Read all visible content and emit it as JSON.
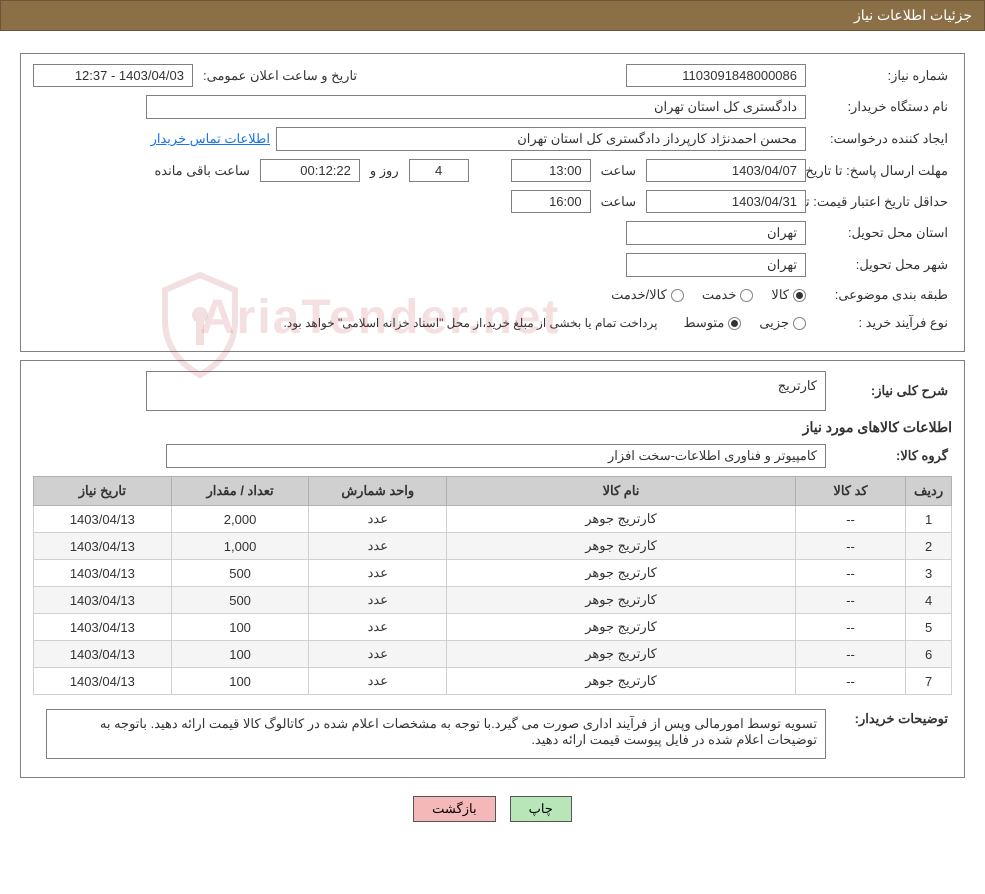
{
  "header": {
    "title": "جزئیات اطلاعات نیاز"
  },
  "info": {
    "need_number_label": "شماره نیاز:",
    "need_number": "1103091848000086",
    "announce_label": "تاریخ و ساعت اعلان عمومی:",
    "announce_value": "1403/04/03 - 12:37",
    "buyer_org_label": "نام دستگاه خریدار:",
    "buyer_org": "دادگستری کل استان تهران",
    "requester_label": "ایجاد کننده درخواست:",
    "requester": "محسن احمدنژاد کارپرداز دادگستری کل استان تهران",
    "contact_link": "اطلاعات تماس خریدار",
    "deadline_label": "مهلت ارسال پاسخ: تا تاریخ:",
    "deadline_date": "1403/04/07",
    "time_label": "ساعت",
    "deadline_time": "13:00",
    "days_label": "روز و",
    "days_value": "4",
    "remaining_time": "00:12:22",
    "remaining_label": "ساعت باقی مانده",
    "price_validity_label": "حداقل تاریخ اعتبار قیمت: تا تاریخ:",
    "price_date": "1403/04/31",
    "price_time": "16:00",
    "delivery_province_label": "استان محل تحویل:",
    "delivery_province": "تهران",
    "delivery_city_label": "شهر محل تحویل:",
    "delivery_city": "تهران",
    "category_label": "طبقه بندی موضوعی:",
    "radio_goods": "کالا",
    "radio_service": "خدمت",
    "radio_goods_service": "کالا/خدمت",
    "process_type_label": "نوع فرآیند خرید :",
    "radio_partial": "جزیی",
    "radio_medium": "متوسط",
    "process_note": "پرداخت تمام یا بخشی از مبلغ خرید،از محل \"اسناد خزانه اسلامی\" خواهد بود."
  },
  "detail": {
    "general_desc_label": "شرح کلی نیاز:",
    "general_desc": "کارتریج",
    "items_title": "اطلاعات کالاهای مورد نیاز",
    "group_label": "گروه کالا:",
    "group_value": "کامپیوتر و فناوری اطلاعات-سخت افزار",
    "table": {
      "columns": [
        "ردیف",
        "کد کالا",
        "نام کالا",
        "واحد شمارش",
        "تعداد / مقدار",
        "تاریخ نیاز"
      ],
      "rows": [
        [
          "1",
          "--",
          "کارتریج جوهر",
          "عدد",
          "2,000",
          "1403/04/13"
        ],
        [
          "2",
          "--",
          "کارتریج جوهر",
          "عدد",
          "1,000",
          "1403/04/13"
        ],
        [
          "3",
          "--",
          "کارتریج جوهر",
          "عدد",
          "500",
          "1403/04/13"
        ],
        [
          "4",
          "--",
          "کارتریج جوهر",
          "عدد",
          "500",
          "1403/04/13"
        ],
        [
          "5",
          "--",
          "کارتریج جوهر",
          "عدد",
          "100",
          "1403/04/13"
        ],
        [
          "6",
          "--",
          "کارتریج جوهر",
          "عدد",
          "100",
          "1403/04/13"
        ],
        [
          "7",
          "--",
          "کارتریج جوهر",
          "عدد",
          "100",
          "1403/04/13"
        ]
      ],
      "col_widths": [
        "5%",
        "12%",
        "38%",
        "15%",
        "15%",
        "15%"
      ]
    },
    "buyer_notes_label": "توضیحات خریدار:",
    "buyer_notes": "تسویه توسط امورمالی وپس از فرآیند اداری صورت می گیرد.با توجه به مشخصات اعلام شده در کاتالوگ کالا   قیمت ارائه دهید. باتوجه به توضیحات اعلام شده در فایل پیوست قیمت ارائه دهید."
  },
  "buttons": {
    "print": "چاپ",
    "back": "بازگشت"
  },
  "watermark": {
    "text": "AriaTender.net"
  },
  "colors": {
    "header_bg": "#8b6f47",
    "border": "#808080",
    "th_bg": "#d0d0d0",
    "link": "#1a73e8",
    "btn_print_bg": "#b8e6b8",
    "btn_back_bg": "#f5b8b8"
  }
}
